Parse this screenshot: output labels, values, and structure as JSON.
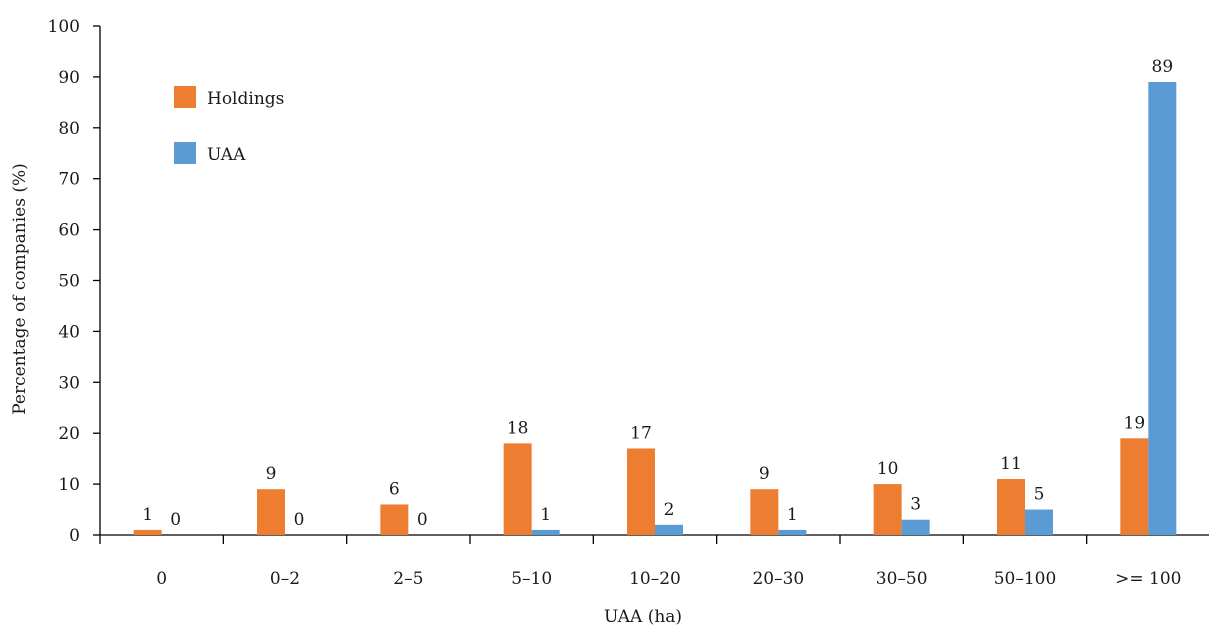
{
  "chart_data": {
    "type": "bar",
    "categories": [
      "0",
      "0–2",
      "2–5",
      "5–10",
      "10–20",
      "20–30",
      "30–50",
      "50–100",
      ">= 100"
    ],
    "series": [
      {
        "name": "Holdings",
        "color": "#ED7D31",
        "values": [
          1,
          9,
          6,
          18,
          17,
          9,
          10,
          11,
          19
        ]
      },
      {
        "name": "UAA",
        "color": "#5B9BD5",
        "values": [
          0,
          0,
          0,
          1,
          2,
          1,
          3,
          5,
          89
        ]
      }
    ],
    "xlabel": "UAA (ha)",
    "ylabel": "Percentage of companies (%)",
    "ylim": [
      0,
      100
    ],
    "yticks": [
      0,
      10,
      20,
      30,
      40,
      50,
      60,
      70,
      80,
      90,
      100
    ],
    "grid": false,
    "legend_position": "top-left"
  }
}
